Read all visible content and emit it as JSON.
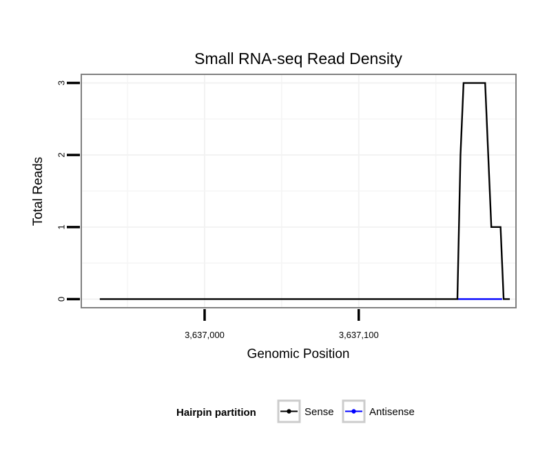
{
  "chart_data": {
    "type": "line",
    "title": "Small RNA-seq Read Density",
    "xlabel": "Genomic Position",
    "ylabel": "Total Reads",
    "xlim": [
      3636920,
      3637202
    ],
    "ylim": [
      -0.12,
      3.12
    ],
    "x_ticks": [
      3637000,
      3637100
    ],
    "x_tick_labels": [
      "3,637,000",
      "3,637,100"
    ],
    "y_ticks": [
      0,
      1,
      2,
      3
    ],
    "y_tick_labels": [
      "0",
      "1",
      "2",
      "3"
    ],
    "series": [
      {
        "name": "Sense",
        "color": "#000000",
        "x": [
          3636932,
          3637164,
          3637166,
          3637168,
          3637182,
          3637184,
          3637186,
          3637192,
          3637194,
          3637198
        ],
        "y": [
          0,
          0,
          2,
          3,
          3,
          2,
          1,
          1,
          0,
          0
        ]
      },
      {
        "name": "Antisense",
        "color": "#0000ff",
        "x": [
          3637164,
          3637193
        ],
        "y": [
          0,
          0
        ]
      }
    ],
    "legend": {
      "title": "Hairpin partition",
      "position": "bottom",
      "entries": [
        "Sense",
        "Antisense"
      ]
    }
  }
}
